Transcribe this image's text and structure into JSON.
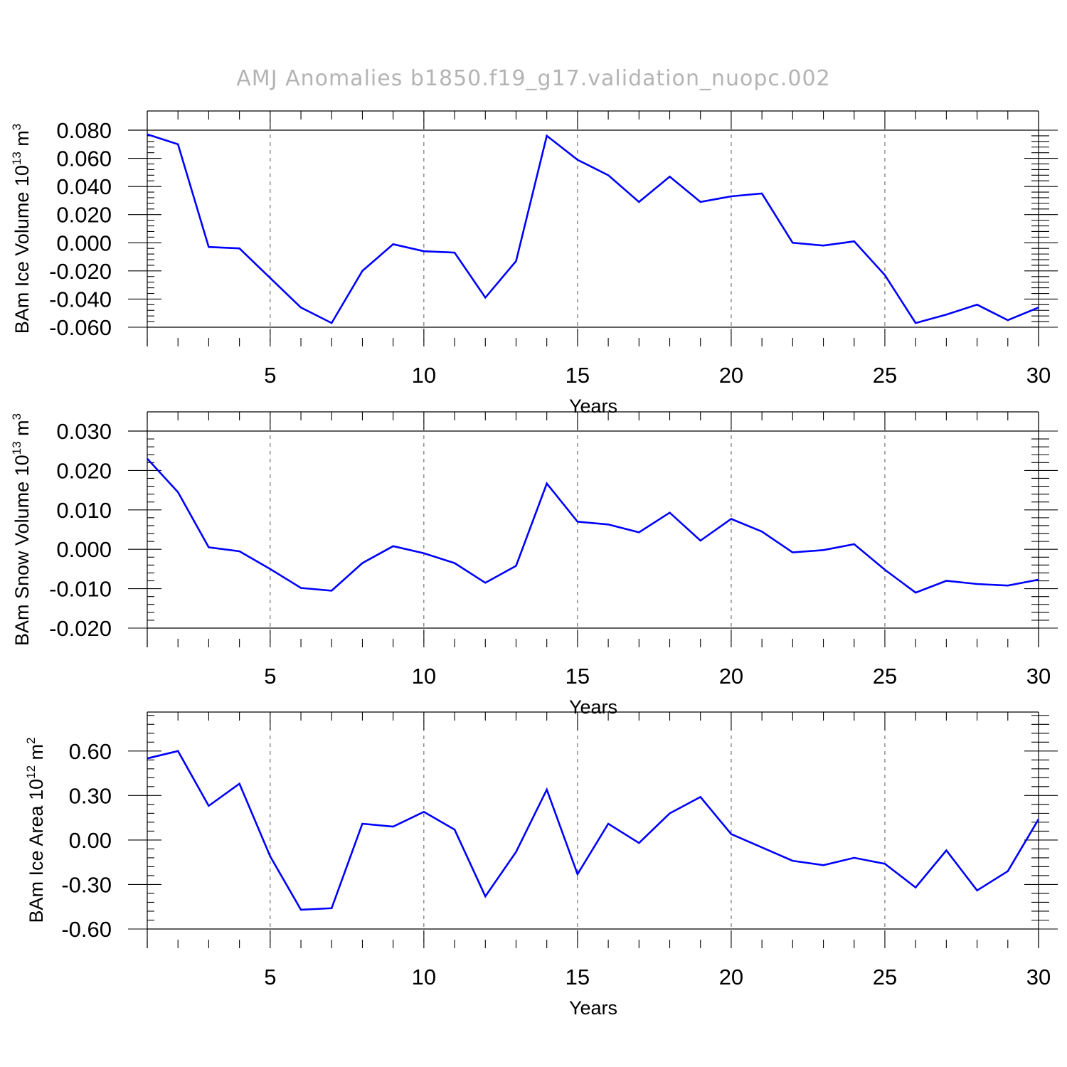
{
  "title": "AMJ Anomalies b1850.f19_g17.validation_nuopc.002",
  "colors": {
    "series": "#0000ff",
    "title": "#b4b4b4",
    "frame": "#000000",
    "grid": "#555555"
  },
  "chart_data": [
    {
      "type": "line",
      "ylabel": {
        "prefix": "BAm Ice Volume 10",
        "exp": "13",
        "unit": " m",
        "unit_exp": "3"
      },
      "xlabel": "Years",
      "xlim": [
        1,
        30
      ],
      "x_ticks": [
        5,
        10,
        15,
        20,
        25,
        30
      ],
      "x_tick_labels": [
        "5",
        "10",
        "15",
        "20",
        "25",
        "30"
      ],
      "ylim": [
        -0.06,
        0.08
      ],
      "y_ticks": [
        0.08,
        0.06,
        0.04,
        0.02,
        0.0,
        -0.02,
        -0.04,
        -0.06
      ],
      "y_tick_labels": [
        "0.080",
        "0.060",
        "0.040",
        "0.020",
        "0.000",
        "-0.020",
        "-0.040",
        "-0.060"
      ],
      "grid": "vertical dashed at major x ticks",
      "x": [
        1,
        2,
        3,
        4,
        5,
        6,
        7,
        8,
        9,
        10,
        11,
        12,
        13,
        14,
        15,
        16,
        17,
        18,
        19,
        20,
        21,
        22,
        23,
        24,
        25,
        26,
        27,
        28,
        29,
        30
      ],
      "values": [
        0.077,
        0.07,
        -0.003,
        -0.004,
        -0.025,
        -0.046,
        -0.057,
        -0.02,
        -0.001,
        -0.006,
        -0.007,
        -0.039,
        -0.013,
        0.076,
        0.059,
        0.048,
        0.029,
        0.047,
        0.029,
        0.033,
        0.035,
        0.0,
        -0.002,
        0.001,
        -0.023,
        -0.057,
        -0.051,
        -0.044,
        -0.055,
        -0.046
      ]
    },
    {
      "type": "line",
      "ylabel": {
        "prefix": "BAm Snow Volume 10",
        "exp": "13",
        "unit": " m",
        "unit_exp": "3"
      },
      "xlabel": "Years",
      "xlim": [
        1,
        30
      ],
      "x_ticks": [
        5,
        10,
        15,
        20,
        25,
        30
      ],
      "x_tick_labels": [
        "5",
        "10",
        "15",
        "20",
        "25",
        "30"
      ],
      "ylim": [
        -0.02,
        0.03
      ],
      "y_ticks": [
        0.03,
        0.02,
        0.01,
        0.0,
        -0.01,
        -0.02
      ],
      "y_tick_labels": [
        "0.030",
        "0.020",
        "0.010",
        "0.000",
        "-0.010",
        "-0.020"
      ],
      "grid": "vertical dashed at major x ticks",
      "x": [
        1,
        2,
        3,
        4,
        5,
        6,
        7,
        8,
        9,
        10,
        11,
        12,
        13,
        14,
        15,
        16,
        17,
        18,
        19,
        20,
        21,
        22,
        23,
        24,
        25,
        26,
        27,
        28,
        29,
        30
      ],
      "values": [
        0.023,
        0.0145,
        0.0005,
        -0.0005,
        -0.005,
        -0.0098,
        -0.0105,
        -0.0035,
        0.0008,
        -0.001,
        -0.0035,
        -0.0085,
        -0.0042,
        0.0167,
        0.007,
        0.0063,
        0.0043,
        0.0093,
        0.0022,
        0.0077,
        0.0045,
        -0.0008,
        -0.0002,
        0.0013,
        -0.0052,
        -0.011,
        -0.008,
        -0.0088,
        -0.0092,
        -0.0077
      ]
    },
    {
      "type": "line",
      "ylabel": {
        "prefix": "BAm Ice Area 10",
        "exp": "12",
        "unit": " m",
        "unit_exp": "2"
      },
      "xlabel": "Years",
      "xlim": [
        1,
        30
      ],
      "x_ticks": [
        5,
        10,
        15,
        20,
        25,
        30
      ],
      "x_tick_labels": [
        "5",
        "10",
        "15",
        "20",
        "25",
        "30"
      ],
      "ylim": [
        -0.6,
        0.8
      ],
      "y_ticks": [
        0.6,
        0.3,
        0.0,
        -0.3,
        -0.6
      ],
      "y_tick_labels": [
        "0.60",
        "0.30",
        "0.00",
        "-0.30",
        "-0.60"
      ],
      "grid": "vertical dashed at major x ticks",
      "x": [
        1,
        2,
        3,
        4,
        5,
        6,
        7,
        8,
        9,
        10,
        11,
        12,
        13,
        14,
        15,
        16,
        17,
        18,
        19,
        20,
        21,
        22,
        23,
        24,
        25,
        26,
        27,
        28,
        29,
        30
      ],
      "values": [
        0.55,
        0.6,
        0.23,
        0.38,
        -0.11,
        -0.47,
        -0.46,
        0.11,
        0.09,
        0.19,
        0.07,
        -0.38,
        -0.08,
        0.34,
        -0.23,
        0.11,
        -0.02,
        0.18,
        0.29,
        0.04,
        -0.05,
        -0.14,
        -0.17,
        -0.12,
        -0.16,
        -0.32,
        -0.07,
        -0.34,
        -0.21,
        0.14
      ]
    }
  ]
}
